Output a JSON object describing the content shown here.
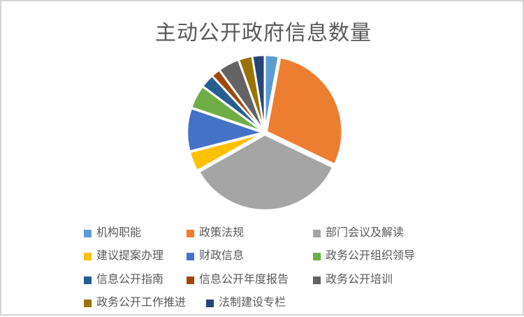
{
  "chart_data": {
    "type": "pie",
    "title": "主动公开政府信息数量",
    "legend_position": "bottom",
    "start_angle_deg": 0,
    "direction": "clockwise",
    "labels": [
      "机构职能",
      "政策法规",
      "部门会议及解读",
      "建议提案办理",
      "财政信息",
      "政务公开组织领导",
      "信息公开指南",
      "信息公开年度报告",
      "政务公开培训",
      "政务公开工作推进",
      "法制建设专栏"
    ],
    "values_percent": [
      2.9,
      29.2,
      34.7,
      4.2,
      9.2,
      5.0,
      2.9,
      1.9,
      4.5,
      2.9,
      2.6
    ],
    "colors": [
      "#5B9BD5",
      "#ED7D31",
      "#A5A5A5",
      "#FFC000",
      "#4472C4",
      "#70AD47",
      "#255E91",
      "#9E480E",
      "#636363",
      "#997300",
      "#264478"
    ]
  },
  "colors": {
    "text": "#595959",
    "frame": "#d4d4d4",
    "slice_border": "#ffffff",
    "background": "#ffffff"
  }
}
